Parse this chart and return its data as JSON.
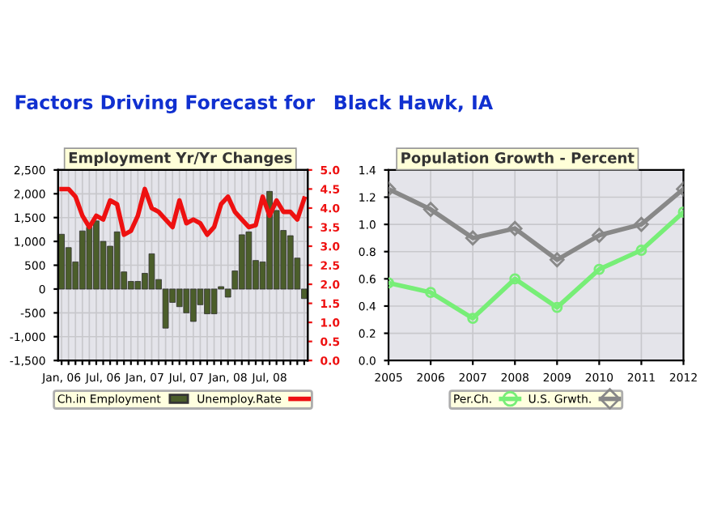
{
  "chart_data": [
    {
      "type": "bar",
      "title": "Employment Yr/Yr Changes",
      "annotations": [
        "Factors Driving Forecast for"
      ],
      "categories": [
        "Jan, 06",
        null,
        null,
        null,
        null,
        null,
        "Jul, 06",
        null,
        null,
        null,
        null,
        null,
        "Jan, 07",
        null,
        null,
        null,
        null,
        null,
        "Jul, 07",
        null,
        null,
        null,
        null,
        null,
        "Jan, 08",
        null,
        null,
        null,
        null,
        null,
        "Jul, 08",
        null,
        null,
        null,
        null,
        null
      ],
      "series": [
        {
          "name": "Ch.in Employment",
          "type": "bar",
          "color": "#4b5e2a",
          "values": [
            1150,
            870,
            570,
            1220,
            1300,
            1430,
            1000,
            900,
            1200,
            360,
            160,
            160,
            330,
            740,
            200,
            -820,
            -280,
            -370,
            -500,
            -680,
            -330,
            -520,
            -520,
            50,
            -170,
            380,
            1140,
            1200,
            600,
            570,
            2050,
            1650,
            1230,
            1120,
            650,
            -200
          ]
        },
        {
          "name": "Unemploy.Rate",
          "type": "line",
          "axis": "y2",
          "color": "#ee1111",
          "values": [
            4.5,
            4.5,
            4.3,
            3.8,
            3.5,
            3.8,
            3.7,
            4.2,
            4.1,
            3.3,
            3.4,
            3.8,
            4.5,
            4.0,
            3.9,
            3.7,
            3.5,
            4.2,
            3.6,
            3.7,
            3.6,
            3.3,
            3.5,
            4.1,
            4.3,
            3.9,
            3.7,
            3.5,
            3.55,
            4.3,
            3.8,
            4.2,
            3.9,
            3.9,
            3.7,
            4.25
          ]
        }
      ],
      "ylim": [
        -1500,
        2500
      ],
      "yticks": [
        {
          "value": -1500,
          "label": "-1,500"
        },
        {
          "value": -1000,
          "label": "-1,000"
        },
        -500,
        0,
        500,
        {
          "value": 1000,
          "label": "1,000"
        },
        {
          "value": 1500,
          "label": "1,500"
        },
        {
          "value": 2000,
          "label": "2,000"
        },
        {
          "value": 2500,
          "label": "2,500"
        }
      ],
      "y2lim": [
        0,
        5
      ],
      "y2ticks": [
        {
          "value": 0,
          "label": "0.0"
        },
        0.5,
        {
          "value": 1,
          "label": "1.0"
        },
        1.5,
        {
          "value": 2,
          "label": "2.0"
        },
        2.5,
        {
          "value": 3,
          "label": "3.0"
        },
        3.5,
        {
          "value": 4,
          "label": "4.0"
        },
        4.5,
        {
          "value": 5,
          "label": "5.0"
        }
      ],
      "grid": true,
      "legend": "bottom",
      "line_style": "solid"
    },
    {
      "type": "line",
      "title": "Population Growth - Percent",
      "annotations": [
        "Black Hawk, IA"
      ],
      "x": [
        2005,
        2006,
        2007,
        2008,
        2009,
        2010,
        2011,
        2012
      ],
      "series": [
        {
          "name": "Per.Ch.",
          "color": "#77ee77",
          "marker": "circle",
          "values": [
            0.57,
            0.5,
            0.31,
            0.6,
            0.39,
            0.67,
            0.81,
            1.09
          ]
        },
        {
          "name": "U.S. Grwth.",
          "color": "#888888",
          "marker": "diamond",
          "values": [
            1.26,
            1.11,
            0.9,
            0.97,
            0.74,
            0.92,
            1.0,
            1.26
          ]
        }
      ],
      "xlim": [
        2005,
        2012
      ],
      "xticks": [
        2005,
        2006,
        2007,
        2008,
        2009,
        2010,
        2011,
        2012
      ],
      "ylim": [
        0,
        1.4
      ],
      "yticks": [
        {
          "value": 0,
          "label": "0.0"
        },
        0.2,
        0.4,
        0.6,
        0.8,
        {
          "value": 1,
          "label": "1.0"
        },
        1.2,
        1.4
      ],
      "grid": true,
      "legend": "bottom",
      "line_style": "solid"
    }
  ]
}
